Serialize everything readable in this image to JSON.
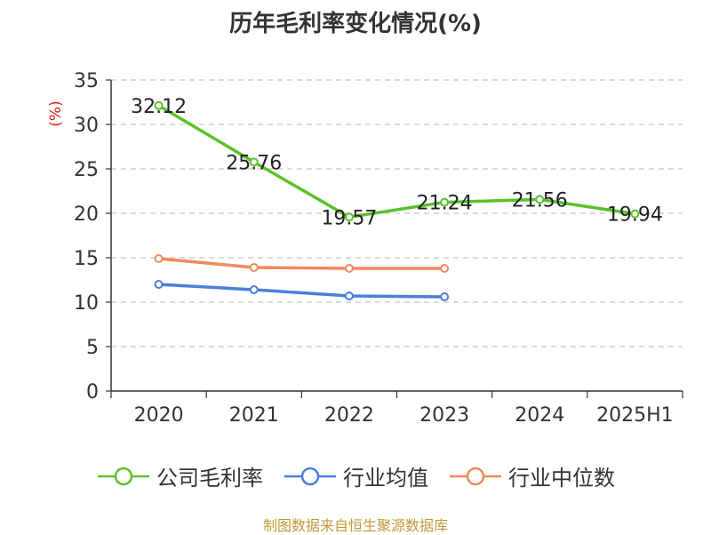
{
  "chart_data": {
    "type": "line",
    "title": "历年毛利率变化情况(%)",
    "ylabel": "(%)",
    "xlabel": "",
    "categories": [
      "2020",
      "2021",
      "2022",
      "2023",
      "2024",
      "2025H1"
    ],
    "ylim": [
      0,
      35
    ],
    "yticks": [
      0,
      5,
      10,
      15,
      20,
      25,
      30,
      35
    ],
    "grid": true,
    "legend_position": "bottom",
    "series": [
      {
        "name": "公司毛利率",
        "color": "#5bc12a",
        "values": [
          32.12,
          25.76,
          19.57,
          21.24,
          21.56,
          19.94
        ],
        "labels": [
          "32.12",
          "25.76",
          "19.57",
          "21.24",
          "21.56",
          "19.94"
        ]
      },
      {
        "name": "行业均值",
        "color": "#4a7fdc",
        "values": [
          12.0,
          11.4,
          10.7,
          10.6,
          null,
          null
        ],
        "labels": []
      },
      {
        "name": "行业中位数",
        "color": "#f08a5a",
        "values": [
          14.9,
          13.9,
          13.8,
          13.8,
          null,
          null
        ],
        "labels": []
      }
    ]
  },
  "source_note": "制图数据来自恒生聚源数据库",
  "colors": {
    "axis": "#333333",
    "grid": "#c8c8c8",
    "ylabel": "#d61f1f",
    "source": "#c19a3a"
  }
}
